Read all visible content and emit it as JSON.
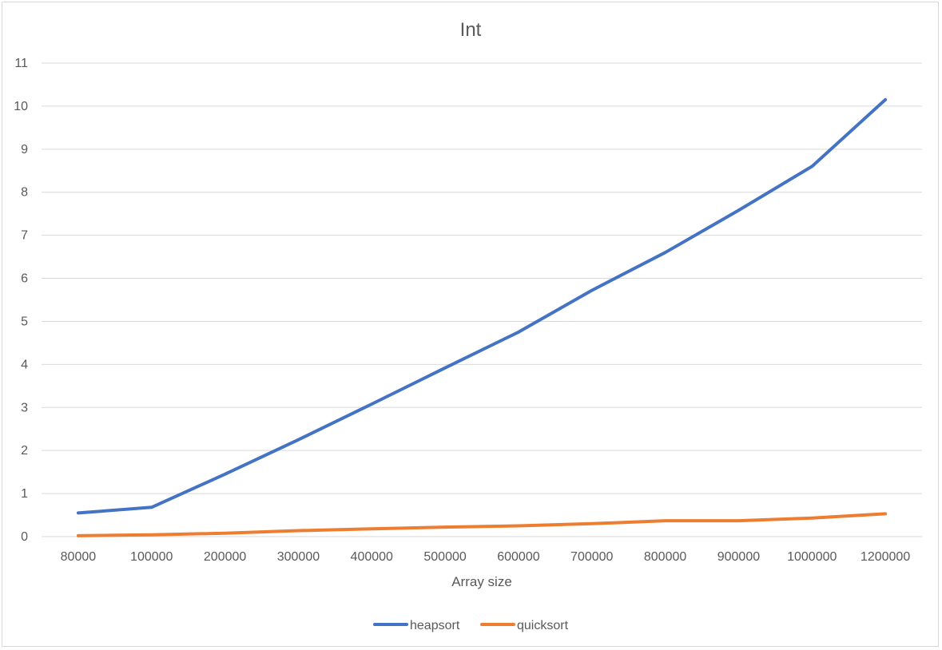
{
  "chart_data": {
    "type": "line",
    "title": "Int",
    "xlabel": "Array size",
    "ylabel": "",
    "categories": [
      "80000",
      "100000",
      "200000",
      "300000",
      "400000",
      "500000",
      "600000",
      "700000",
      "800000",
      "900000",
      "1000000",
      "1200000"
    ],
    "yticks": [
      0,
      1,
      2,
      3,
      4,
      5,
      6,
      7,
      8,
      9,
      10,
      11
    ],
    "ylim": [
      0,
      11
    ],
    "grid": true,
    "legend_position": "bottom",
    "series": [
      {
        "name": "heapsort",
        "color": "#4472c4",
        "values": [
          0.55,
          0.68,
          1.45,
          2.25,
          3.08,
          3.92,
          4.75,
          5.72,
          6.6,
          7.58,
          8.6,
          10.15
        ]
      },
      {
        "name": "quicksort",
        "color": "#ed7d31",
        "values": [
          0.02,
          0.04,
          0.08,
          0.14,
          0.18,
          0.22,
          0.25,
          0.3,
          0.37,
          0.37,
          0.43,
          0.53
        ]
      }
    ]
  }
}
